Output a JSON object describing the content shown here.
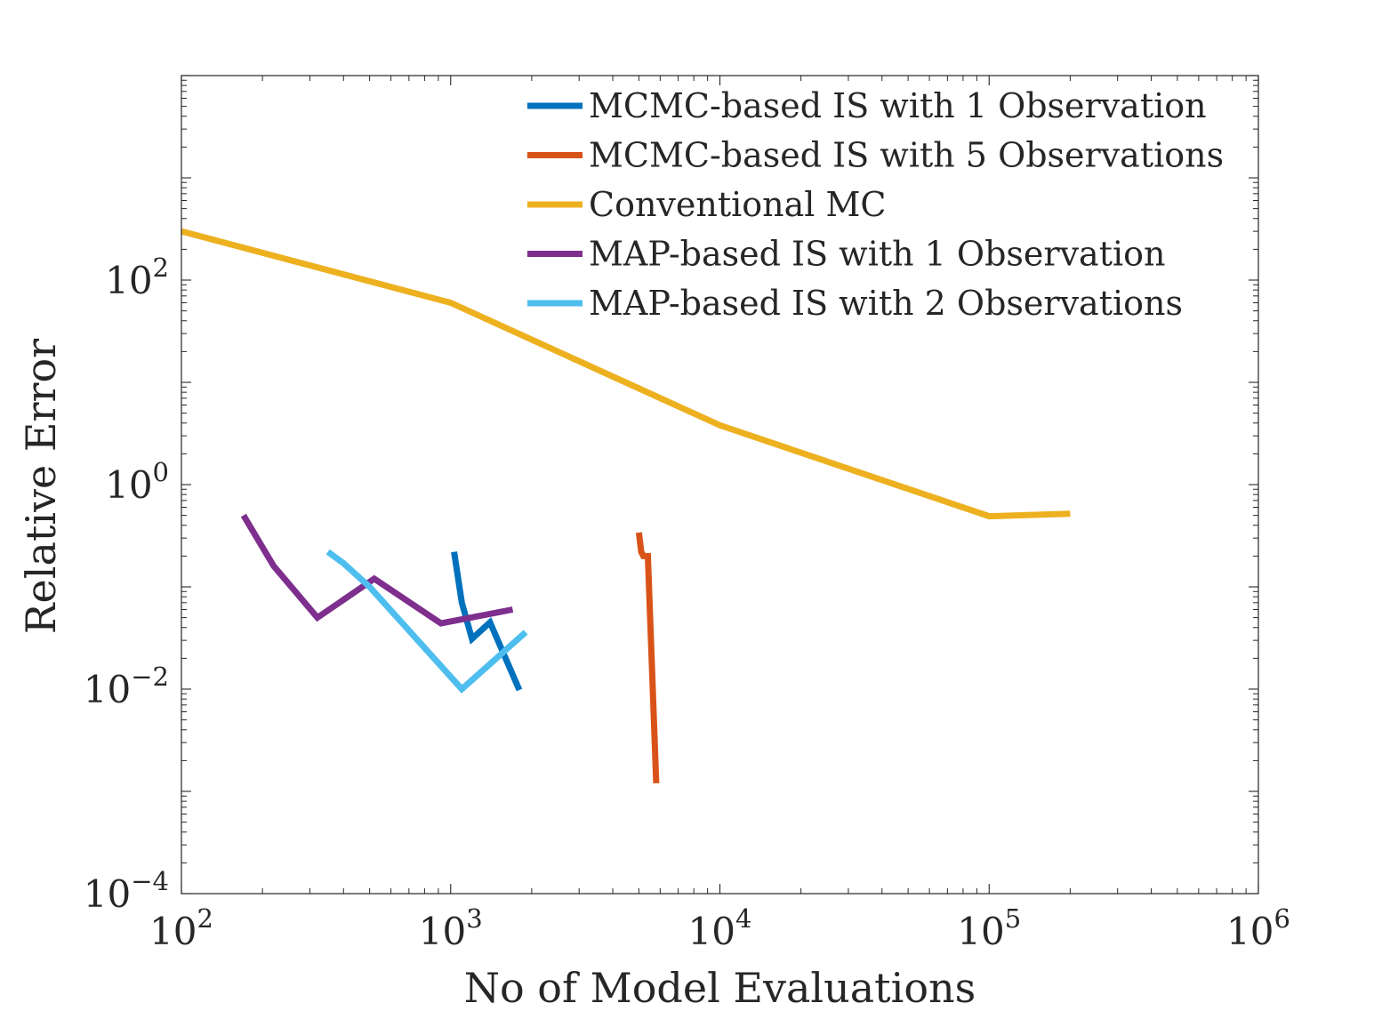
{
  "chart_data": {
    "type": "line",
    "title": "",
    "xlabel": "No of Model Evaluations",
    "ylabel": "Relative Error",
    "xscale": "log",
    "yscale": "log",
    "xlim": [
      100,
      1000000
    ],
    "ylim": [
      0.0001,
      10000
    ],
    "x_ticks": [
      {
        "value": 100,
        "base": "10",
        "exp": "2"
      },
      {
        "value": 1000,
        "base": "10",
        "exp": "3"
      },
      {
        "value": 10000,
        "base": "10",
        "exp": "4"
      },
      {
        "value": 100000,
        "base": "10",
        "exp": "5"
      },
      {
        "value": 1000000,
        "base": "10",
        "exp": "6"
      }
    ],
    "y_ticks": [
      {
        "value": 0.0001,
        "base": "10",
        "exp": "−4"
      },
      {
        "value": 0.01,
        "base": "10",
        "exp": "−2"
      },
      {
        "value": 1,
        "base": "10",
        "exp": "0"
      },
      {
        "value": 100,
        "base": "10",
        "exp": "2"
      }
    ],
    "grid": false,
    "legend_position": "top-right",
    "series": [
      {
        "name": "MCMC-based IS with 1 Observation",
        "color": "#0072BD",
        "points": [
          [
            1030,
            0.22
          ],
          [
            1100,
            0.07
          ],
          [
            1200,
            0.031
          ],
          [
            1400,
            0.045
          ],
          [
            1800,
            0.0098
          ]
        ]
      },
      {
        "name": "MCMC-based IS with 5 Observations",
        "color": "#D95319",
        "points": [
          [
            5000,
            0.34
          ],
          [
            5100,
            0.22
          ],
          [
            5200,
            0.2
          ],
          [
            5400,
            0.2
          ],
          [
            5800,
            0.0012
          ]
        ]
      },
      {
        "name": "Conventional MC",
        "color": "#EDB120",
        "points": [
          [
            100,
            300
          ],
          [
            1000,
            60
          ],
          [
            10000,
            3.8
          ],
          [
            100000,
            0.49
          ],
          [
            200000,
            0.52
          ]
        ]
      },
      {
        "name": "MAP-based IS with 1 Observation",
        "color": "#7E2F8E",
        "points": [
          [
            170,
            0.5
          ],
          [
            220,
            0.16
          ],
          [
            320,
            0.05
          ],
          [
            520,
            0.12
          ],
          [
            920,
            0.044
          ],
          [
            1700,
            0.06
          ]
        ]
      },
      {
        "name": "MAP-based IS with 2 Observations",
        "color": "#4DBEEE",
        "points": [
          [
            350,
            0.22
          ],
          [
            400,
            0.17
          ],
          [
            500,
            0.1
          ],
          [
            1100,
            0.01
          ],
          [
            1900,
            0.036
          ]
        ]
      }
    ]
  }
}
